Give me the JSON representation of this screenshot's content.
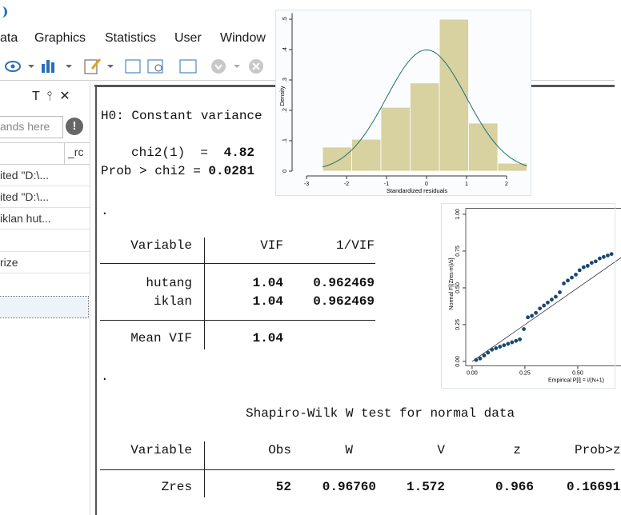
{
  "menu": [
    "ata",
    "Graphics",
    "Statistics",
    "User",
    "Window"
  ],
  "sidebar": {
    "search_placeholder": "ands here",
    "column": "_rc",
    "items": [
      "ited \"D:\\...",
      "ited \"D:\\...",
      "iklan hut...",
      "rize"
    ]
  },
  "results": {
    "hettest": {
      "h0": "H0: Constant variance",
      "chi2_label": "chi2(1)  =",
      "chi2": "4.82",
      "prob_label": "Prob > chi2 =",
      "prob": "0.0281"
    },
    "prompt": ".",
    "vif": {
      "headers": [
        "Variable",
        "VIF",
        "1/VIF"
      ],
      "rows": [
        [
          "hutang",
          "1.04",
          "0.962469"
        ],
        [
          "iklan",
          "1.04",
          "0.962469"
        ]
      ],
      "mean": [
        "Mean VIF",
        "1.04"
      ]
    },
    "swilk": {
      "title": "Shapiro-Wilk W test for normal data",
      "headers": [
        "Variable",
        "Obs",
        "W",
        "V",
        "z",
        "Prob>z"
      ],
      "row": [
        "Zres",
        "52",
        "0.96760",
        "1.572",
        "0.966",
        "0.16691"
      ]
    }
  },
  "histogram": {
    "xlabel": "Standardized residuals",
    "ylabel": "Density",
    "bins": [
      -2.6,
      -1.87,
      -1.14,
      -0.41,
      0.32,
      1.05,
      1.78,
      2.51
    ],
    "densities": [
      0.079,
      0.105,
      0.21,
      0.29,
      0.5,
      0.158,
      0.026
    ],
    "color": "#d8d1a0",
    "xlim": [
      -3.2,
      2.6
    ],
    "ylim": [
      0,
      0.52
    ],
    "xticks": [
      -3,
      -2,
      -1,
      0,
      1,
      2
    ],
    "yticks": [
      0,
      {
        "value": 0.1,
        "label": ".1"
      },
      {
        "value": 0.2,
        "label": ".2"
      },
      {
        "value": 0.3,
        "label": ".3"
      },
      {
        "value": 0.4,
        "label": ".4"
      },
      {
        "value": 0.5,
        "label": ".5"
      }
    ]
  },
  "pnorm": {
    "xlabel": "Empirical P[i] = i/(N+1)",
    "ylabel": "Normal F[(Zres-m)/s]",
    "x": [
      0.019,
      0.038,
      0.057,
      0.075,
      0.094,
      0.113,
      0.132,
      0.151,
      0.17,
      0.189,
      0.208,
      0.226,
      0.245,
      0.264,
      0.283,
      0.302,
      0.321,
      0.34,
      0.358,
      0.377,
      0.396,
      0.415,
      0.434,
      0.453,
      0.472,
      0.491,
      0.509,
      0.528,
      0.547,
      0.566,
      0.585,
      0.604,
      0.623,
      0.642,
      0.66
    ],
    "y": [
      0.01,
      0.02,
      0.04,
      0.06,
      0.08,
      0.09,
      0.1,
      0.11,
      0.12,
      0.13,
      0.14,
      0.15,
      0.22,
      0.3,
      0.31,
      0.33,
      0.36,
      0.38,
      0.4,
      0.42,
      0.44,
      0.47,
      0.53,
      0.55,
      0.57,
      0.59,
      0.62,
      0.64,
      0.65,
      0.67,
      0.68,
      0.7,
      0.71,
      0.72,
      0.73
    ],
    "color": "#1a476f",
    "xlim": [
      -0.03,
      0.67
    ],
    "ylim": [
      -0.03,
      1.04
    ],
    "xticks": [
      {
        "value": 0,
        "label": "0.00"
      },
      0.25,
      {
        "value": 0.5,
        "label": "0.50"
      }
    ],
    "yticks": [
      {
        "value": 0,
        "label": "0.00"
      },
      0.25,
      {
        "value": 0.5,
        "label": "0.50"
      },
      0.75,
      {
        "value": 1,
        "label": "1.00"
      }
    ]
  }
}
